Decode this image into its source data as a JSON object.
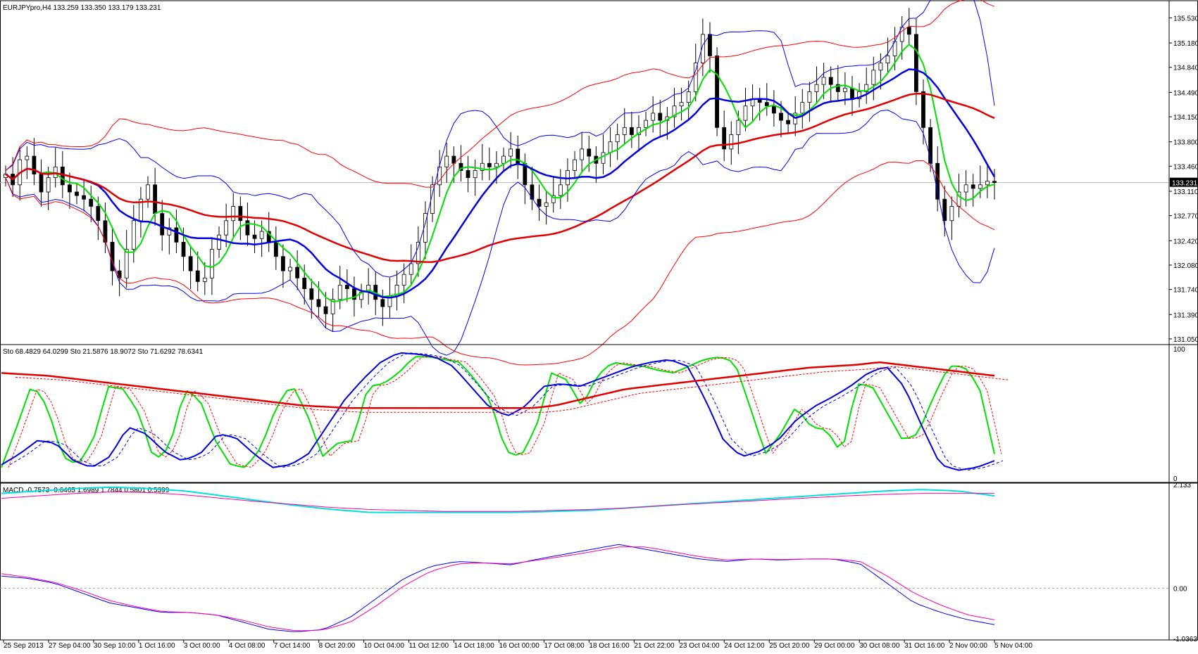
{
  "chart_data": [
    {
      "type": "candlestick",
      "header": "EURJPYpro,H4  133.259 133.350 133.179 133.231",
      "current_price_label": "133.231",
      "ylim": [
        131.0,
        135.75
      ],
      "y_ticks": [
        "135.530",
        "135.180",
        "134.840",
        "134.490",
        "134.150",
        "133.800",
        "133.460",
        "133.110",
        "132.770",
        "132.420",
        "132.080",
        "131.740",
        "131.390",
        "131.050"
      ],
      "y_tick_values": [
        135.53,
        135.18,
        134.84,
        134.49,
        134.15,
        133.8,
        133.46,
        133.11,
        132.77,
        132.42,
        132.08,
        131.74,
        131.39,
        131.05
      ],
      "current_price": 133.231,
      "close": [
        133.35,
        133.2,
        133.55,
        133.6,
        133.35,
        133.1,
        133.3,
        133.45,
        133.2,
        133.1,
        133.05,
        133.0,
        132.9,
        132.7,
        132.4,
        132.0,
        131.9,
        132.3,
        132.7,
        133.0,
        133.2,
        132.8,
        132.5,
        132.6,
        132.4,
        132.2,
        132.0,
        131.85,
        131.9,
        132.3,
        132.5,
        132.7,
        132.9,
        132.7,
        132.5,
        132.45,
        132.55,
        132.4,
        132.2,
        132.0,
        132.05,
        131.9,
        131.75,
        131.6,
        131.5,
        131.4,
        131.6,
        131.8,
        131.75,
        131.6,
        131.7,
        131.8,
        131.6,
        131.5,
        131.65,
        131.8,
        131.95,
        132.1,
        132.4,
        132.8,
        133.2,
        133.45,
        133.6,
        133.5,
        133.4,
        133.3,
        133.4,
        133.5,
        133.45,
        133.5,
        133.6,
        133.7,
        133.5,
        133.2,
        133.0,
        132.9,
        132.95,
        133.05,
        133.2,
        133.4,
        133.55,
        133.7,
        133.6,
        133.5,
        133.65,
        133.8,
        133.9,
        134.0,
        133.9,
        134.0,
        134.1,
        134.2,
        134.1,
        134.15,
        134.3,
        134.35,
        134.5,
        134.9,
        135.3,
        135.0,
        134.0,
        133.7,
        133.9,
        134.1,
        134.3,
        134.4,
        134.35,
        134.3,
        134.2,
        134.1,
        134.05,
        134.2,
        134.35,
        134.5,
        134.6,
        134.7,
        134.6,
        134.5,
        134.55,
        134.4,
        134.5,
        134.6,
        134.8,
        134.9,
        135.0,
        135.2,
        135.4,
        135.3,
        134.5,
        134.0,
        133.5,
        133.0,
        132.7,
        132.9,
        133.1,
        133.2,
        133.15,
        133.2,
        133.25,
        133.231
      ],
      "indicators": [
        "Bollinger Bands (green, middle, wide)",
        "Moving Averages"
      ]
    },
    {
      "type": "line",
      "header": "Sto 68.4829 64.0299  Sto 21.5876 18.9072  Sto 71.6292 78.6341",
      "ylim": [
        0,
        100
      ],
      "y_ticks": [
        "100",
        "0"
      ],
      "y_tick_values": [
        100,
        0
      ],
      "series_fast": [
        10,
        40,
        72,
        55,
        18,
        12,
        30,
        70,
        68,
        50,
        15,
        25,
        68,
        60,
        30,
        12,
        10,
        25,
        55,
        72,
        50,
        18,
        28,
        30,
        70,
        72,
        80,
        92,
        92,
        90,
        88,
        75,
        60,
        22,
        18,
        40,
        80,
        75,
        55,
        78,
        88,
        86,
        85,
        82,
        80,
        85,
        90,
        92,
        88,
        55,
        20,
        35,
        55,
        40,
        38,
        20,
        72,
        70,
        50,
        30,
        35,
        62,
        85,
        85,
        70,
        20
      ],
      "series_mid": [
        12,
        20,
        30,
        28,
        15,
        10,
        18,
        40,
        35,
        22,
        15,
        20,
        35,
        32,
        20,
        10,
        12,
        20,
        40,
        60,
        75,
        88,
        95,
        94,
        92,
        85,
        70,
        55,
        48,
        55,
        70,
        72,
        70,
        75,
        80,
        85,
        88,
        90,
        85,
        60,
        30,
        18,
        22,
        30,
        45,
        55,
        62,
        70,
        80,
        85,
        70,
        40,
        12,
        8,
        10,
        15
      ],
      "series_slow": [
        80,
        79,
        78,
        76,
        74,
        72,
        70,
        68,
        66,
        64,
        62,
        60,
        58,
        56,
        55,
        54,
        54,
        54,
        54,
        54,
        54,
        54,
        54,
        54,
        56,
        60,
        64,
        68,
        70,
        72,
        74,
        76,
        78,
        80,
        82,
        84,
        85,
        86,
        88,
        86,
        84,
        82,
        80,
        78
      ]
    },
    {
      "type": "line",
      "header": "MACD -0.7573 -0.6465 1.6989 1.7844 0.5801 0.5399",
      "ylim": [
        -1.0363,
        2.133
      ],
      "y_ticks": [
        "2.133",
        "0.00",
        "-1.0363"
      ],
      "y_tick_values": [
        2.133,
        0.0,
        -1.0363
      ],
      "macd_short": [
        0.25,
        0.2,
        0.1,
        -0.1,
        -0.3,
        -0.4,
        -0.5,
        -0.5,
        -0.55,
        -0.7,
        -0.85,
        -0.9,
        -0.85,
        -0.6,
        -0.2,
        0.2,
        0.45,
        0.55,
        0.52,
        0.48,
        0.6,
        0.7,
        0.8,
        0.9,
        0.8,
        0.7,
        0.6,
        0.55,
        0.6,
        0.58,
        0.6,
        0.6,
        0.5,
        0.1,
        -0.3,
        -0.5,
        -0.65,
        -0.75
      ],
      "signal_short": [
        0.3,
        0.22,
        0.12,
        -0.05,
        -0.25,
        -0.38,
        -0.48,
        -0.5,
        -0.55,
        -0.66,
        -0.8,
        -0.88,
        -0.86,
        -0.7,
        -0.35,
        0.05,
        0.35,
        0.5,
        0.52,
        0.5,
        0.58,
        0.66,
        0.75,
        0.85,
        0.85,
        0.75,
        0.65,
        0.58,
        0.6,
        0.59,
        0.6,
        0.6,
        0.55,
        0.25,
        -0.1,
        -0.35,
        -0.55,
        -0.65
      ],
      "macd_long": [
        1.95,
        2.0,
        2.05,
        2.08,
        2.05,
        2.0,
        1.9,
        1.8,
        1.7,
        1.62,
        1.56,
        1.56,
        1.56,
        1.56,
        1.56,
        1.58,
        1.6,
        1.65,
        1.7,
        1.75,
        1.8,
        1.85,
        1.9,
        1.95,
        2.0,
        2.03,
        2.0,
        1.9
      ],
      "signal_long": [
        1.85,
        1.9,
        1.95,
        1.98,
        1.97,
        1.92,
        1.85,
        1.78,
        1.72,
        1.66,
        1.62,
        1.6,
        1.58,
        1.58,
        1.58,
        1.6,
        1.62,
        1.65,
        1.7,
        1.74,
        1.78,
        1.82,
        1.86,
        1.9,
        1.93,
        1.95,
        1.95,
        1.95
      ]
    }
  ],
  "x_axis": {
    "labels": [
      "25 Sep 2013",
      "27 Sep 04:00",
      "30 Sep 10:00",
      "1 Oct 16:00",
      "3 Oct 00:00",
      "4 Oct 08:00",
      "7 Oct 14:00",
      "8 Oct 20:00",
      "10 Oct 04:00",
      "11 Oct 12:00",
      "14 Oct 18:00",
      "16 Oct 00:00",
      "17 Oct 08:00",
      "18 Oct 16:00",
      "21 Oct 22:00",
      "23 Oct 04:00",
      "24 Oct 12:00",
      "25 Oct 20:00",
      "29 Oct 00:00",
      "30 Oct 08:00",
      "31 Oct 16:00",
      "2 Nov 00:00",
      "5 Nov 04:00"
    ]
  }
}
